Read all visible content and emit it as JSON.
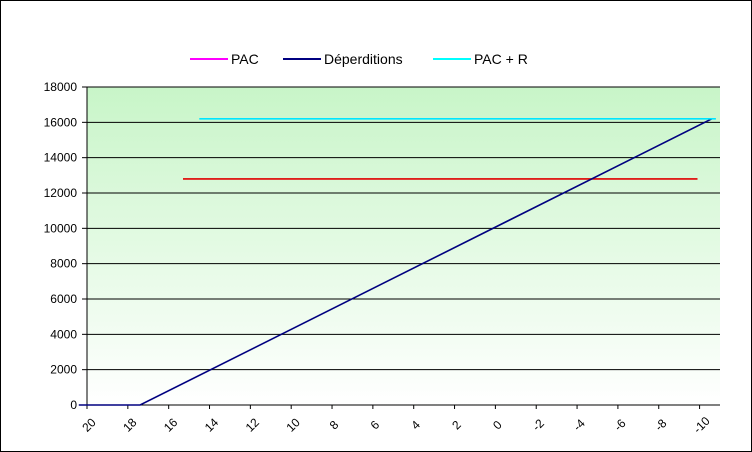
{
  "chart_data": {
    "type": "line",
    "title": "",
    "xlabel": "",
    "ylabel": "",
    "x_ticks": [
      "20",
      "18",
      "16",
      "14",
      "12",
      "10",
      "8",
      "6",
      "4",
      "2",
      "0",
      "-2",
      "-4",
      "-6",
      "-8",
      "-10"
    ],
    "xlim": [
      20,
      -11
    ],
    "ylim": [
      0,
      18000
    ],
    "y_ticks": [
      "0",
      "2000",
      "4000",
      "6000",
      "8000",
      "10000",
      "12000",
      "14000",
      "16000",
      "18000"
    ],
    "grid": true,
    "legend_position": "top",
    "series": [
      {
        "name": "PAC",
        "legend_color": "#ff00ff",
        "color": "#e00000",
        "points": [
          [
            15.3,
            12800
          ],
          [
            -9.9,
            12800
          ]
        ]
      },
      {
        "name": "Déperditions",
        "legend_color": "#000080",
        "color": "#000080",
        "points": [
          [
            20.4,
            0
          ],
          [
            17.4,
            0
          ],
          [
            -10.6,
            16200
          ]
        ]
      },
      {
        "name": "PAC + R",
        "legend_color": "#00ffff",
        "color": "#00e5ff",
        "points": [
          [
            14.5,
            16200
          ],
          [
            -10.8,
            16200
          ]
        ]
      }
    ],
    "colors": {
      "plot_top": "#c8f5c8",
      "plot_bottom": "#ffffff"
    }
  }
}
